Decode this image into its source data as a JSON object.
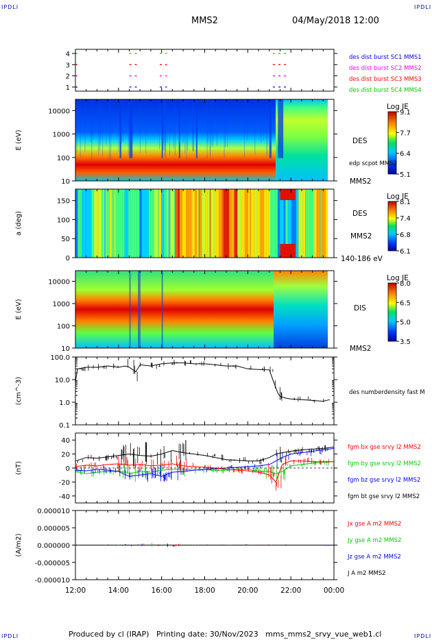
{
  "header": {
    "corner_left_top": "IPDLI",
    "corner_right_top": "IPDLI",
    "corner_left_bottom": "IPDLI",
    "corner_right_bottom": "IPDLI",
    "spacecraft": "MMS2",
    "datetime": "04/May/2018 12:00"
  },
  "footer": "Produced by cl (IRAP)   Printing date: 30/Nov/2023   mms_mms2_srvy_vue_web1.cl",
  "colors": {
    "mms1": "#0000ff",
    "mms2": "#ff00ff",
    "mms3": "#ff0000",
    "mms4": "#00cc00",
    "bx": "#ff0000",
    "by": "#00cc00",
    "bz": "#0000ff",
    "bt": "#000000"
  },
  "chart_data": [
    {
      "type": "scatter",
      "panel": "burst availability",
      "y_ticks": [
        "1",
        "2",
        "3",
        "4"
      ],
      "series": [
        {
          "name": "des dist burst SC1 MMS1",
          "color": "#0000ff",
          "y": 1,
          "intervals": [
            [
              "14:30",
              "14:55"
            ],
            [
              "15:55",
              "16:15"
            ],
            [
              "21:10",
              "21:55"
            ]
          ]
        },
        {
          "name": "des dist burst SC2 MMS2",
          "color": "#ff00ff",
          "y": 2,
          "intervals": [
            [
              "14:30",
              "14:55"
            ],
            [
              "15:55",
              "16:15"
            ],
            [
              "21:10",
              "21:55"
            ]
          ]
        },
        {
          "name": "des dist burst SC3 MMS3",
          "color": "#ff0000",
          "y": 3,
          "intervals": [
            [
              "14:30",
              "14:55"
            ],
            [
              "15:55",
              "16:15"
            ],
            [
              "21:10",
              "21:55"
            ]
          ]
        },
        {
          "name": "des dist burst SC4 MMS4",
          "color": "#00cc00",
          "y": 4,
          "intervals": [
            [
              "14:30",
              "14:55"
            ],
            [
              "15:55",
              "16:15"
            ],
            [
              "21:10",
              "21:55"
            ]
          ]
        }
      ]
    },
    {
      "type": "heatmap",
      "panel": "DES energy spectrogram",
      "ylabel": "E (eV)",
      "y_ticks": [
        "10",
        "100",
        "1000",
        "10000"
      ],
      "ylim": [
        10,
        30000
      ],
      "side_labels": [
        "DES",
        "edp scpot MMS2",
        "MMS2"
      ],
      "colorbar": {
        "title": "Log JE",
        "ticks": [
          "9.1",
          "7.7",
          "6.4",
          "5.1"
        ],
        "range": [
          5.1,
          9.1
        ]
      }
    },
    {
      "type": "heatmap",
      "panel": "DES pitch angle",
      "ylabel": "a (deg)",
      "y_ticks": [
        "0",
        "50",
        "100",
        "150"
      ],
      "ylim": [
        0,
        180
      ],
      "side_labels": [
        "DES",
        "MMS2",
        "140-186 eV"
      ],
      "colorbar": {
        "title": "Log JE",
        "ticks": [
          "8.1",
          "7.4",
          "6.8",
          "6.1"
        ],
        "range": [
          6.1,
          8.1
        ]
      }
    },
    {
      "type": "heatmap",
      "panel": "DIS energy spectrogram",
      "ylabel": "E (eV)",
      "y_ticks": [
        "10",
        "100",
        "1000",
        "10000"
      ],
      "ylim": [
        10,
        30000
      ],
      "side_labels": [
        "DIS",
        "MMS2"
      ],
      "colorbar": {
        "title": "Log JE",
        "ticks": [
          "8.0",
          "6.5",
          "5.0",
          "3.5"
        ],
        "range": [
          3.5,
          8.0
        ]
      }
    },
    {
      "type": "line",
      "panel": "number density",
      "ylabel": "(cm^-3)",
      "y_ticks": [
        "0.1",
        "1.0",
        "10.0",
        "100.0"
      ],
      "ylim": [
        0.1,
        100
      ],
      "series": [
        {
          "name": "des numberdensity fast M",
          "color": "#000000",
          "x": [
            12.0,
            12.1,
            12.5,
            13.0,
            13.5,
            14.0,
            14.3,
            14.5,
            14.8,
            15.0,
            15.5,
            16.0,
            16.5,
            17.0,
            17.5,
            18.0,
            18.5,
            19.0,
            19.5,
            20.0,
            20.5,
            21.0,
            21.2,
            21.4,
            21.5,
            21.8,
            22.0,
            22.5,
            23.0,
            23.5,
            23.8
          ],
          "y": [
            8,
            30,
            35,
            35,
            40,
            35,
            40,
            35,
            22,
            45,
            40,
            50,
            55,
            55,
            50,
            50,
            45,
            40,
            40,
            30,
            28,
            27,
            8,
            2.5,
            1.8,
            1.5,
            1.4,
            1.3,
            1.2,
            1.1,
            1.3
          ]
        }
      ]
    },
    {
      "type": "line",
      "panel": "magnetic field",
      "ylabel": "(nT)",
      "y_ticks": [
        "-40",
        "-20",
        "0",
        "20",
        "40"
      ],
      "ylim": [
        -50,
        50
      ],
      "x": [
        12.0,
        12.5,
        13.0,
        13.5,
        14.0,
        14.5,
        15.0,
        15.5,
        16.0,
        16.5,
        17.0,
        17.5,
        18.0,
        18.5,
        19.0,
        19.5,
        20.0,
        20.5,
        21.0,
        21.3,
        21.6,
        22.0,
        22.5,
        23.0,
        23.5,
        24.0
      ],
      "series": [
        {
          "name": "fgm bx gse srvy l2 MMS2",
          "color": "#ff0000",
          "y": [
            2,
            4,
            3,
            5,
            6,
            4,
            5,
            3,
            4,
            6,
            3,
            2,
            1,
            0,
            -2,
            -3,
            -4,
            -6,
            -10,
            -20,
            5,
            10,
            10,
            9,
            9,
            9
          ]
        },
        {
          "name": "fgm by gse srvy l2 MMS2",
          "color": "#00cc00",
          "y": [
            -5,
            -8,
            -6,
            -5,
            -4,
            -8,
            -5,
            -6,
            -3,
            -2,
            -2,
            -3,
            -2,
            -4,
            -3,
            -2,
            -2,
            -4,
            -5,
            -8,
            -5,
            3,
            5,
            7,
            8,
            9
          ]
        },
        {
          "name": "fgm bz gse srvy l2 MMS2",
          "color": "#0000ff",
          "y": [
            -3,
            -4,
            -2,
            -3,
            -5,
            -12,
            -10,
            -8,
            -12,
            -6,
            -5,
            -3,
            -2,
            -1,
            0,
            1,
            2,
            3,
            5,
            10,
            15,
            20,
            22,
            24,
            26,
            28
          ]
        },
        {
          "name": "fgm bt gse srvy l2 MMS2",
          "color": "#000000",
          "y": [
            10,
            15,
            14,
            16,
            18,
            20,
            18,
            17,
            20,
            25,
            22,
            20,
            18,
            15,
            12,
            11,
            10,
            10,
            15,
            20,
            22,
            24,
            26,
            27,
            28,
            30
          ]
        }
      ]
    },
    {
      "type": "line",
      "panel": "current density",
      "ylabel": "(A/m2)",
      "y_ticks": [
        "-0.000010",
        "-0.000005",
        "0.000000",
        "0.000005",
        "0.000010"
      ],
      "ylim": [
        -1e-05,
        1e-05
      ],
      "xlabel_ticks": [
        "12:00",
        "14:00",
        "16:00",
        "18:00",
        "20:00",
        "22:00",
        "00:00"
      ],
      "series": [
        {
          "name": "Jx gse A m2 MMS2",
          "color": "#ff0000"
        },
        {
          "name": "Jy gse A m2 MMS2",
          "color": "#00cc00"
        },
        {
          "name": "Jz gse A m2 MMS2",
          "color": "#0000ff"
        },
        {
          "name": "J A m2 MMS2",
          "color": "#000000"
        }
      ]
    }
  ]
}
